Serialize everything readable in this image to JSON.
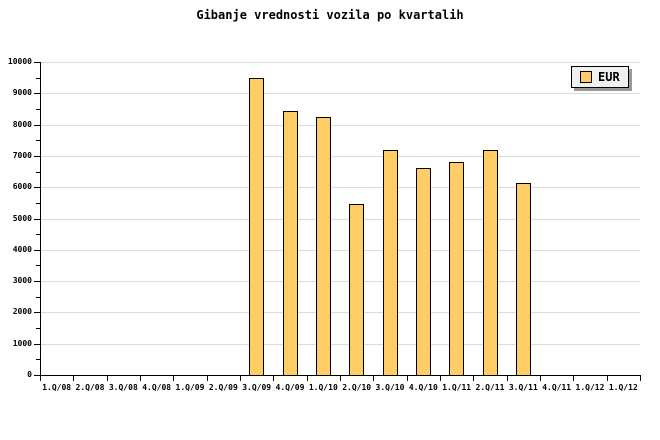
{
  "title": "Gibanje vrednosti vozila po kvartalih",
  "legend": {
    "label": "EUR",
    "swatch_color": "#FFCC66"
  },
  "y_axis_tick_labels": [
    "0",
    "1000",
    "2000",
    "3000",
    "4000",
    "5000",
    "6000",
    "7000",
    "8000",
    "9000",
    "10000"
  ],
  "chart_data": {
    "type": "bar",
    "title": "Gibanje vrednosti vozila po kvartalih",
    "xlabel": "",
    "ylabel": "",
    "categories": [
      "1.Q/08",
      "2.Q/08",
      "3.Q/08",
      "4.Q/08",
      "1.Q/09",
      "2.Q/09",
      "3.Q/09",
      "4.Q/09",
      "1.Q/10",
      "2.Q/10",
      "3.Q/10",
      "4.Q/10",
      "1.Q/11",
      "2.Q/11",
      "3.Q/11",
      "4.Q/11",
      "1.Q/12",
      "1.Q/12"
    ],
    "series": [
      {
        "name": "EUR",
        "values": [
          null,
          null,
          null,
          null,
          null,
          null,
          9500,
          8450,
          8250,
          5450,
          7200,
          6600,
          6800,
          7200,
          6150,
          null,
          null,
          null
        ]
      }
    ],
    "ylim": [
      0,
      10000
    ],
    "ytick_step": 1000,
    "yminor_step": 500,
    "grid": "horizontal",
    "legend_position": "top-right",
    "colors": {
      "bar_fill": "#FFCC66",
      "bar_border": "#000000",
      "grid_line": "#DCDCDC",
      "axis": "#000000",
      "text": "#000000",
      "legend_bg": "#F0F0F0",
      "legend_border": "#000000",
      "legend_shadow": "#999999",
      "background": "#FFFFFF"
    }
  }
}
